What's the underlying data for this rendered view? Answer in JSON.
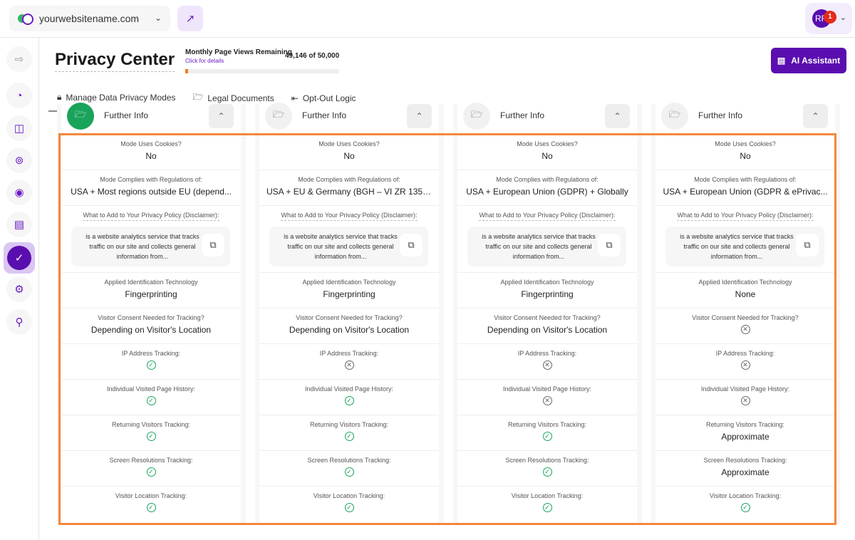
{
  "topbar": {
    "site": "yourwebsitename.com",
    "avatar_initials": "RF",
    "notification_count": "1"
  },
  "sidebar": {
    "items": [
      "logout-icon",
      "pie-chart-icon",
      "bag-icon",
      "fingerprint-icon",
      "scan-icon",
      "chat-icon",
      "shield-icon",
      "gear-icon",
      "location-icon"
    ],
    "active": "shield-icon"
  },
  "header": {
    "title": "Privacy Center",
    "page_views_label": "Monthly Page Views Remaining",
    "page_views_link": "Click for details",
    "page_views_value": "49,146 of 50,000",
    "page_views_used_fraction": 0.017,
    "ai_button": "AI Assistant"
  },
  "tabs": [
    {
      "label": "Manage Data Privacy Modes",
      "icon": "lock-icon",
      "active": true
    },
    {
      "label": "Legal Documents",
      "icon": "folder-icon"
    },
    {
      "label": "Opt-Out Logic",
      "icon": "exit-icon"
    }
  ],
  "colors": {
    "accent": "#5a0eb0",
    "highlight": "#f5873a",
    "check": "#1aa35b"
  },
  "columns": [
    {
      "header": "Further Info",
      "selected": true,
      "rows": [
        {
          "label": "Mode Uses Cookies?",
          "value": "No"
        },
        {
          "label": "Mode Complies with Regulations of:",
          "value": "USA + Most regions outside EU (depend..."
        },
        {
          "label": "What to Add to Your Privacy Policy (Disclaimer):",
          "disclaimer": "is a website analytics service that tracks traffic on our site and collects general information from..."
        },
        {
          "label": "Applied Identification Technology",
          "value": "Fingerprinting"
        },
        {
          "label": "Visitor Consent Needed for Tracking?",
          "value": "Depending on Visitor's Location"
        },
        {
          "label": "IP Address Tracking:",
          "status": "check"
        },
        {
          "label": "Individual Visited Page History:",
          "status": "check"
        },
        {
          "label": "Returning Visitors Tracking:",
          "status": "check"
        },
        {
          "label": "Screen Resolutions Tracking:",
          "status": "check"
        },
        {
          "label": "Visitor Location Tracking:",
          "status": "check"
        }
      ]
    },
    {
      "header": "Further Info",
      "rows": [
        {
          "label": "Mode Uses Cookies?",
          "value": "No"
        },
        {
          "label": "Mode Complies with Regulations of:",
          "value": "USA + EU & Germany (BGH – VI ZR 135/1..."
        },
        {
          "label": "What to Add to Your Privacy Policy (Disclaimer):",
          "disclaimer": "is a website analytics service that tracks traffic on our site and collects general information from..."
        },
        {
          "label": "Applied Identification Technology",
          "value": "Fingerprinting"
        },
        {
          "label": "Visitor Consent Needed for Tracking?",
          "value": "Depending on Visitor's Location"
        },
        {
          "label": "IP Address Tracking:",
          "status": "x"
        },
        {
          "label": "Individual Visited Page History:",
          "status": "check"
        },
        {
          "label": "Returning Visitors Tracking:",
          "status": "check"
        },
        {
          "label": "Screen Resolutions Tracking:",
          "status": "check"
        },
        {
          "label": "Visitor Location Tracking:",
          "status": "check"
        }
      ]
    },
    {
      "header": "Further Info",
      "rows": [
        {
          "label": "Mode Uses Cookies?",
          "value": "No"
        },
        {
          "label": "Mode Complies with Regulations of:",
          "value": "USA + European Union (GDPR) + Globally"
        },
        {
          "label": "What to Add to Your Privacy Policy (Disclaimer):",
          "disclaimer": "is a website analytics service that tracks traffic on our site and collects general information from..."
        },
        {
          "label": "Applied Identification Technology",
          "value": "Fingerprinting"
        },
        {
          "label": "Visitor Consent Needed for Tracking?",
          "value": "Depending on Visitor's Location"
        },
        {
          "label": "IP Address Tracking:",
          "status": "x"
        },
        {
          "label": "Individual Visited Page History:",
          "status": "x"
        },
        {
          "label": "Returning Visitors Tracking:",
          "status": "check"
        },
        {
          "label": "Screen Resolutions Tracking:",
          "status": "check"
        },
        {
          "label": "Visitor Location Tracking:",
          "status": "check"
        }
      ]
    },
    {
      "header": "Further Info",
      "rows": [
        {
          "label": "Mode Uses Cookies?",
          "value": "No"
        },
        {
          "label": "Mode Complies with Regulations of:",
          "value": "USA + European Union (GDPR & ePrivac..."
        },
        {
          "label": "What to Add to Your Privacy Policy (Disclaimer):",
          "disclaimer": "is a website analytics service that tracks traffic on our site and collects general information from..."
        },
        {
          "label": "Applied Identification Technology",
          "value": "None"
        },
        {
          "label": "Visitor Consent Needed for Tracking?",
          "status": "x"
        },
        {
          "label": "IP Address Tracking:",
          "status": "x"
        },
        {
          "label": "Individual Visited Page History:",
          "status": "x"
        },
        {
          "label": "Returning Visitors Tracking:",
          "value": "Approximate"
        },
        {
          "label": "Screen Resolutions Tracking:",
          "value": "Approximate"
        },
        {
          "label": "Visitor Location Tracking:",
          "status": "check"
        }
      ]
    }
  ]
}
